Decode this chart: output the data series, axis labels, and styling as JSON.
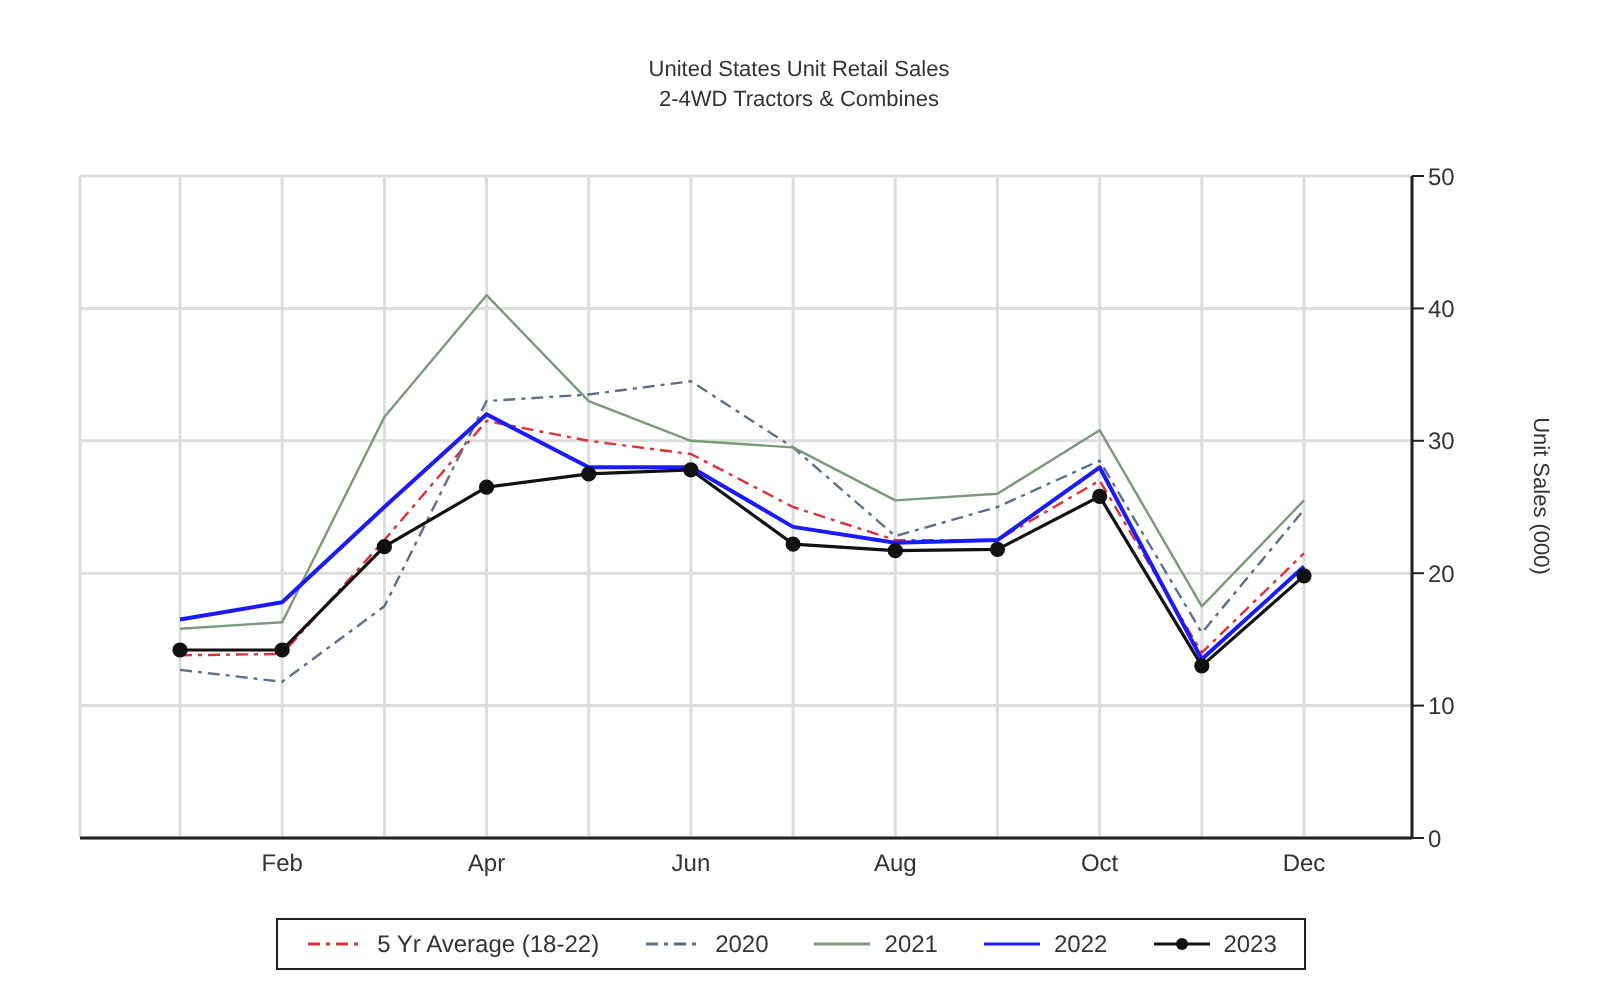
{
  "chart_data": {
    "type": "line",
    "title": "United States Unit Retail Sales",
    "subtitle": "2-4WD Tractors & Combines",
    "ylabel": "Unit Sales (000)",
    "categories": [
      null,
      "Feb",
      null,
      "Apr",
      null,
      "Jun",
      null,
      "Aug",
      null,
      "Oct",
      null,
      "Dec"
    ],
    "series": [
      {
        "name": "5 Yr Average (18-22)",
        "color": "#e0303a",
        "line_style": "dashed",
        "marker": "none",
        "values": [
          13.8,
          13.9,
          22.5,
          31.5,
          30,
          29,
          25,
          22.5,
          22.5,
          27,
          14,
          21.5
        ]
      },
      {
        "name": "2020",
        "color": "#5a7090",
        "line_style": "dashed",
        "marker": "none",
        "values": [
          12.7,
          11.8,
          17.5,
          33,
          33.5,
          34.5,
          29.5,
          22.8,
          25,
          28.5,
          15.5,
          24.8
        ]
      },
      {
        "name": "2021",
        "color": "#7a9a7a",
        "line_style": "solid",
        "marker": "none",
        "values": [
          15.8,
          16.3,
          31.8,
          41,
          33,
          30,
          29.5,
          25.5,
          26,
          30.8,
          17.5,
          25.5
        ]
      },
      {
        "name": "2022",
        "color": "#1a1aff",
        "line_style": "solid",
        "marker": "none",
        "values": [
          16.5,
          17.8,
          25,
          32,
          28,
          28,
          23.5,
          22.3,
          22.5,
          28,
          13.5,
          20.5
        ]
      },
      {
        "name": "2023",
        "color": "#111111",
        "line_style": "solid",
        "marker": "circle",
        "values": [
          14.2,
          14.2,
          22,
          26.5,
          27.5,
          27.8,
          22.2,
          21.7,
          21.8,
          25.8,
          13,
          19.8
        ]
      }
    ],
    "ylim": [
      0,
      50
    ],
    "yticks": [
      0,
      10,
      20,
      30,
      40,
      50
    ],
    "grid": true,
    "legend": "bottom"
  }
}
